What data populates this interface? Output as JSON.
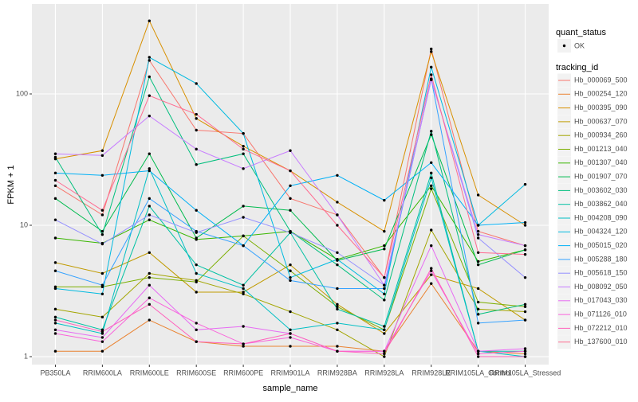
{
  "chart_data": {
    "type": "line",
    "log_y": true,
    "grid": true,
    "x_label": "sample_name",
    "y_label": "FPKM + 1",
    "categories": [
      "PB350LA",
      "RRIM600LA",
      "RRIM600LE",
      "RRIM600SE",
      "RRIM600PE",
      "RRIM901LA",
      "RRIM928BA",
      "RRIM928LA",
      "RRIM928LE",
      "RRIM105LA_Control",
      "RRIM105LA_Stressed"
    ],
    "ylim": [
      0.87,
      484
    ],
    "yticks": [
      1,
      10,
      100
    ],
    "point_legend_title": "quant_status",
    "point_legend_label": "OK",
    "point_color": "#000000",
    "legend_title": "tracking_id",
    "series": [
      {
        "name": "Hb_000069_500",
        "color": "#F8766D",
        "values": [
          20,
          12,
          180,
          53,
          50,
          16,
          12,
          4,
          220,
          9,
          7
        ]
      },
      {
        "name": "Hb_000254_120",
        "color": "#EA8331",
        "values": [
          1.1,
          1.1,
          1.9,
          1.3,
          1.2,
          1.2,
          1.2,
          1.1,
          3.6,
          1.1,
          1.05
        ]
      },
      {
        "name": "Hb_000395_090",
        "color": "#D89000",
        "values": [
          32,
          37,
          360,
          65,
          40,
          26,
          15,
          9,
          210,
          17,
          10
        ]
      },
      {
        "name": "Hb_000637_070",
        "color": "#C09B00",
        "values": [
          5.2,
          4.3,
          6.2,
          3.1,
          3.1,
          5,
          2.5,
          1.5,
          4.2,
          3.3,
          1.9
        ]
      },
      {
        "name": "Hb_000934_260",
        "color": "#A3A500",
        "values": [
          2.3,
          2,
          4.3,
          3.8,
          3,
          2.2,
          1.6,
          1,
          9.2,
          2.3,
          2.2
        ]
      },
      {
        "name": "Hb_001213_040",
        "color": "#7CAE00",
        "values": [
          3.4,
          3.4,
          4,
          3.7,
          8.3,
          4.5,
          2.4,
          1.6,
          19,
          2.6,
          2.4
        ]
      },
      {
        "name": "Hb_001307_040",
        "color": "#39B600",
        "values": [
          8,
          7.3,
          11,
          7.8,
          8.3,
          9,
          5.5,
          7,
          20,
          5.3,
          6.5
        ]
      },
      {
        "name": "Hb_001907_070",
        "color": "#00BB4E",
        "values": [
          16,
          9,
          35,
          8,
          14,
          13,
          5.4,
          6.6,
          49,
          5,
          6.5
        ]
      },
      {
        "name": "Hb_003602_030",
        "color": "#00BF7D",
        "values": [
          33,
          8.5,
          135,
          29,
          35,
          9,
          5,
          2.7,
          52,
          2.1,
          2.5
        ]
      },
      {
        "name": "Hb_003862_040",
        "color": "#00C1A3",
        "values": [
          2,
          1.6,
          14,
          5,
          3.5,
          8.8,
          2.3,
          1.7,
          25,
          1.1,
          1.1
        ]
      },
      {
        "name": "Hb_004208_090",
        "color": "#00BFC4",
        "values": [
          1.8,
          1.5,
          27,
          4.3,
          3.3,
          1.6,
          1.8,
          1.6,
          23,
          1.1,
          1.0
        ]
      },
      {
        "name": "Hb_004324_120",
        "color": "#00BAE0",
        "values": [
          3.3,
          3,
          190,
          120,
          50,
          4,
          5.5,
          3,
          160,
          10,
          20.5
        ]
      },
      {
        "name": "Hb_005015_020",
        "color": "#00B0F6",
        "values": [
          25,
          24,
          26,
          13,
          7,
          20,
          24,
          15.5,
          30,
          10,
          10.5
        ]
      },
      {
        "name": "Hb_005288_180",
        "color": "#35A2FF",
        "values": [
          4.5,
          3.5,
          16,
          9,
          7,
          3.8,
          3.3,
          3.3,
          130,
          1.8,
          1.9
        ]
      },
      {
        "name": "Hb_005618_150",
        "color": "#9590FF",
        "values": [
          11,
          7.2,
          12,
          8.8,
          11.5,
          8.8,
          6.2,
          3.5,
          130,
          8,
          4
        ]
      },
      {
        "name": "Hb_008092_050",
        "color": "#C77CFF",
        "values": [
          35,
          34,
          68,
          38,
          27,
          37,
          12,
          3.5,
          128,
          8.5,
          7
        ]
      },
      {
        "name": "Hb_017043_030",
        "color": "#E76BF3",
        "values": [
          1.6,
          1.4,
          3.5,
          1.6,
          1.7,
          1.5,
          1.1,
          1.1,
          7,
          1.1,
          1.15
        ]
      },
      {
        "name": "Hb_071126_010",
        "color": "#FA62DB",
        "values": [
          1.5,
          1.3,
          2.8,
          1.8,
          1.25,
          1.4,
          1.1,
          1.1,
          4.5,
          1.05,
          1.1
        ]
      },
      {
        "name": "Hb_072212_010",
        "color": "#FF62BC",
        "values": [
          1.9,
          1.55,
          2.5,
          1.3,
          1.25,
          1.5,
          1.1,
          1.05,
          4.7,
          1.0,
          1.0
        ]
      },
      {
        "name": "Hb_137600_010",
        "color": "#FF6C91",
        "values": [
          22,
          13,
          97,
          70,
          38,
          26,
          10,
          4,
          140,
          6.2,
          6
        ]
      }
    ]
  }
}
